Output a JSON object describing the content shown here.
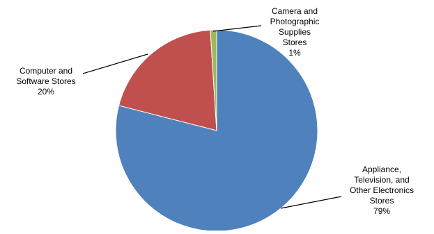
{
  "chart_data": {
    "type": "pie",
    "title": "",
    "legend": "none",
    "data_labels": "category name and percentage, outside with leader lines",
    "slices": [
      {
        "name": "Appliance, Television, and Other Electronics Stores",
        "label_lines": [
          "Appliance,",
          "Television, and",
          "Other Electronics",
          "Stores"
        ],
        "percent_label": "79%",
        "value": 79,
        "color": "#4F81BD"
      },
      {
        "name": "Computer and Software Stores",
        "label_lines": [
          "Computer and",
          "Software Stores"
        ],
        "percent_label": "20%",
        "value": 20,
        "color": "#C0504D"
      },
      {
        "name": "Camera and Photographic Supplies Stores",
        "label_lines": [
          "Camera and",
          "Photographic",
          "Supplies",
          "Stores"
        ],
        "percent_label": "1%",
        "value": 1,
        "color": "#9BBB59"
      }
    ]
  }
}
